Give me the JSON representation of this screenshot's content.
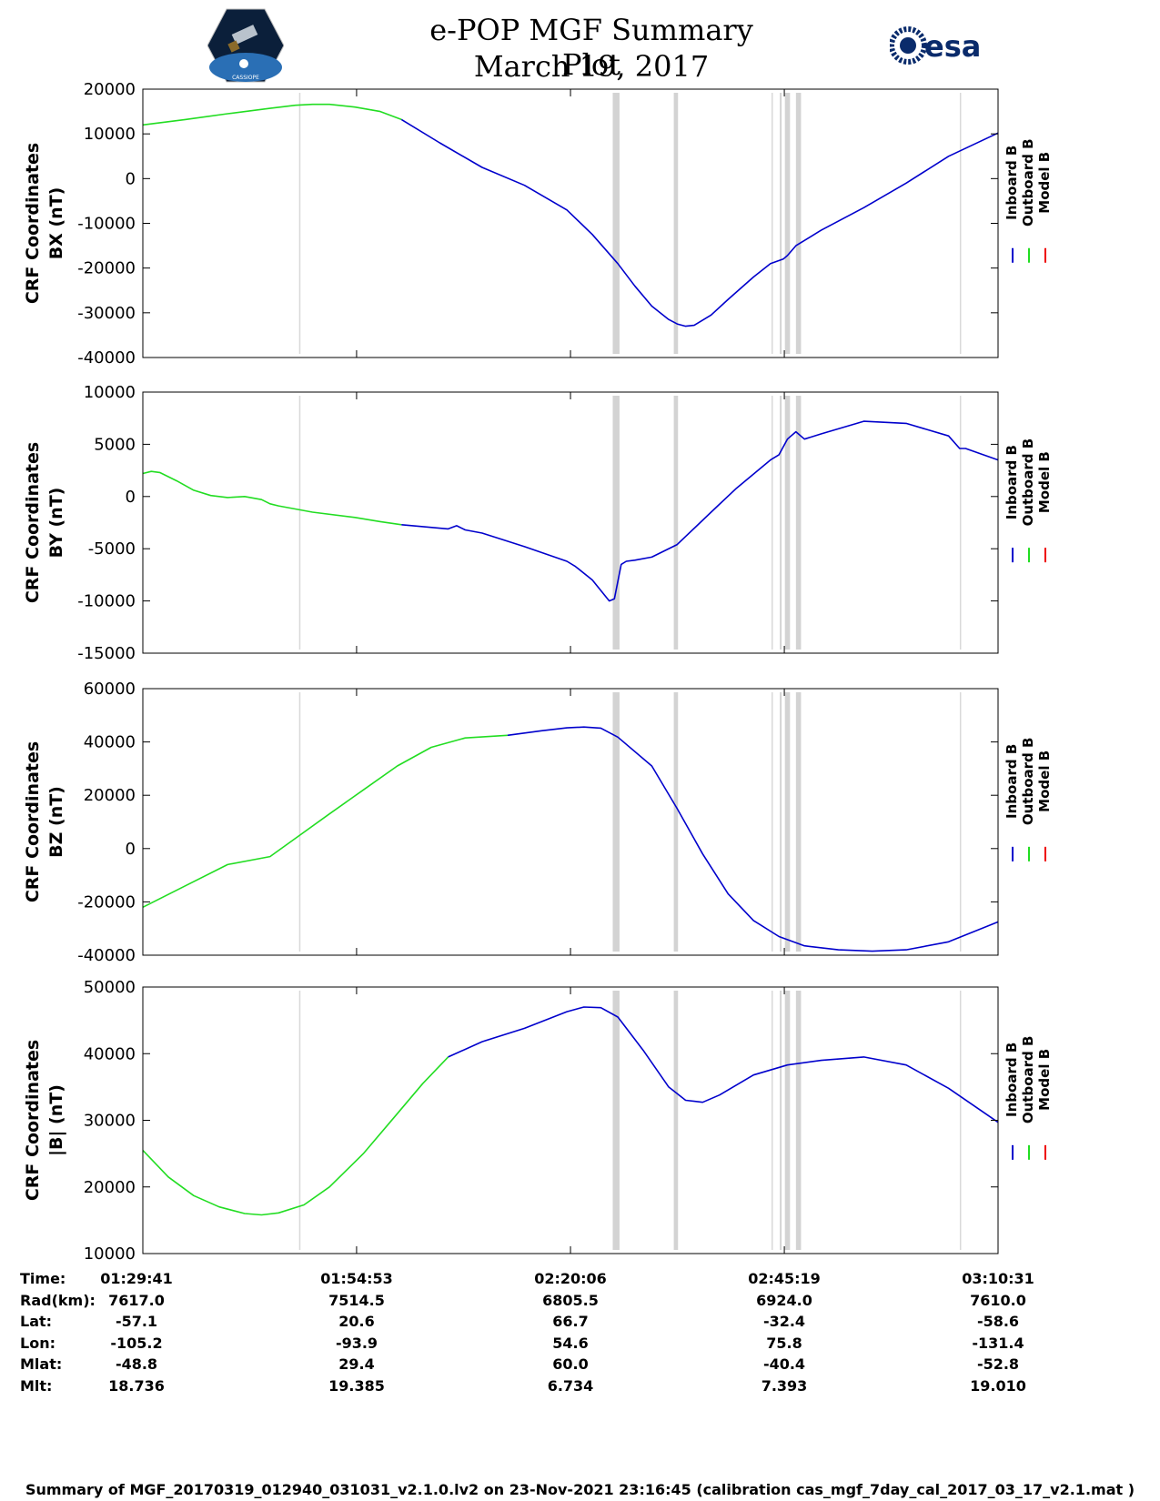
{
  "title": {
    "line1": "e-POP MGF Summary Plot",
    "line2": "March 19, 2017"
  },
  "logos": {
    "left_caption": "CASSIOPE",
    "right_text": "esa"
  },
  "legend": [
    "Inboard B",
    "Outboard B",
    "Model B"
  ],
  "colors": {
    "inboard": "#0000cc",
    "outboard": "#22dd22",
    "model": "#ee0000",
    "gap": "#d3d3d3",
    "thin": "#d9d9d9"
  },
  "chart_data": [
    {
      "type": "line",
      "ylabel_line1": "CRF Coordinates",
      "ylabel_line2": "BX (nT)",
      "ylim": [
        -40000,
        20000
      ],
      "yticks": [
        20000,
        10000,
        0,
        -10000,
        -20000,
        -30000,
        -40000
      ],
      "xlim_minutes": [
        0,
        100.83
      ],
      "gaps_minutes": [
        [
          55.4,
          56.2
        ],
        [
          62.6,
          63.1
        ],
        [
          75.1,
          75.3
        ],
        [
          75.7,
          76.3
        ],
        [
          77.0,
          77.6
        ]
      ],
      "thin_gaps_minutes": [
        18.5,
        74.2,
        96.4
      ],
      "series": [
        {
          "name": "Outboard B",
          "x": [
            0,
            5,
            10,
            15,
            18,
            20,
            22,
            25,
            28,
            30.5
          ],
          "y": [
            12000,
            13200,
            14500,
            15700,
            16400,
            16600,
            16600,
            16000,
            15000,
            13200
          ]
        },
        {
          "name": "Inboard B",
          "x": [
            30.5,
            35,
            40,
            45,
            50,
            53,
            56,
            58,
            60,
            62,
            63,
            64,
            65,
            67,
            69,
            72,
            74,
            75.5,
            76,
            77,
            80,
            85,
            90,
            95,
            100.83
          ],
          "y": [
            13200,
            8000,
            2500,
            -1500,
            -7000,
            -12500,
            -19000,
            -24000,
            -28500,
            -31500,
            -32500,
            -33000,
            -32800,
            -30500,
            -27000,
            -22000,
            -19000,
            -18000,
            -17200,
            -15000,
            -11500,
            -6500,
            -1000,
            5000,
            10200
          ]
        },
        {
          "name": "Model B",
          "x": [],
          "y": []
        }
      ]
    },
    {
      "type": "line",
      "ylabel_line1": "CRF Coordinates",
      "ylabel_line2": "BY (nT)",
      "ylim": [
        -15000,
        10000
      ],
      "yticks": [
        10000,
        5000,
        0,
        -5000,
        -10000,
        -15000
      ],
      "xlim_minutes": [
        0,
        100.83
      ],
      "gaps_minutes": [
        [
          55.4,
          56.2
        ],
        [
          62.6,
          63.1
        ],
        [
          75.1,
          75.3
        ],
        [
          75.7,
          76.3
        ],
        [
          77.0,
          77.6
        ]
      ],
      "thin_gaps_minutes": [
        18.5,
        74.2,
        96.4
      ],
      "series": [
        {
          "name": "Outboard B",
          "x": [
            0,
            1,
            2,
            4,
            6,
            8,
            10,
            12,
            14,
            15,
            16,
            20,
            25,
            28,
            30.5
          ],
          "y": [
            2200,
            2400,
            2300,
            1500,
            600,
            100,
            -100,
            0,
            -300,
            -700,
            -900,
            -1500,
            -2000,
            -2400,
            -2700
          ]
        },
        {
          "name": "Inboard B",
          "x": [
            30.5,
            36,
            37,
            38,
            40,
            45,
            50,
            51,
            53,
            55,
            55.6,
            56.4,
            57,
            58,
            60,
            63,
            67,
            70,
            74,
            75,
            76,
            77,
            78,
            80,
            85,
            90,
            95,
            96.3,
            97,
            100.83
          ],
          "y": [
            -2700,
            -3100,
            -2800,
            -3200,
            -3500,
            -4800,
            -6200,
            -6700,
            -8000,
            -10000,
            -9800,
            -6500,
            -6200,
            -6100,
            -5800,
            -4600,
            -1500,
            800,
            3500,
            4000,
            5500,
            6200,
            5500,
            6000,
            7200,
            7000,
            5800,
            4600,
            4600,
            3500
          ]
        },
        {
          "name": "Model B",
          "x": [],
          "y": []
        }
      ]
    },
    {
      "type": "line",
      "ylabel_line1": "CRF Coordinates",
      "ylabel_line2": "BZ (nT)",
      "ylim": [
        -40000,
        60000
      ],
      "yticks": [
        60000,
        40000,
        20000,
        0,
        -20000,
        -40000
      ],
      "xlim_minutes": [
        0,
        100.83
      ],
      "gaps_minutes": [
        [
          55.4,
          56.2
        ],
        [
          62.6,
          63.1
        ],
        [
          75.1,
          75.3
        ],
        [
          75.7,
          76.3
        ],
        [
          77.0,
          77.6
        ]
      ],
      "thin_gaps_minutes": [
        18.5,
        74.2,
        96.4
      ],
      "series": [
        {
          "name": "Outboard B",
          "x": [
            0,
            5,
            10,
            15,
            18.5,
            22,
            26,
            30,
            34,
            38,
            43
          ],
          "y": [
            -22000,
            -14000,
            -6000,
            -3000,
            5000,
            13000,
            22000,
            31000,
            38000,
            41500,
            42500
          ]
        },
        {
          "name": "Inboard B",
          "x": [
            43,
            47,
            50,
            52,
            54,
            56,
            60,
            63,
            66,
            69,
            72,
            75,
            78,
            82,
            86,
            90,
            95,
            100.83
          ],
          "y": [
            42500,
            44200,
            45300,
            45600,
            45200,
            41800,
            31000,
            15000,
            -2000,
            -17000,
            -27000,
            -33000,
            -36500,
            -38000,
            -38500,
            -38000,
            -35000,
            -27500
          ]
        },
        {
          "name": "Model B",
          "x": [],
          "y": []
        }
      ]
    },
    {
      "type": "line",
      "ylabel_line1": "CRF Coordinates",
      "ylabel_line2": "|B| (nT)",
      "ylim": [
        10000,
        50000
      ],
      "yticks": [
        50000,
        40000,
        30000,
        20000,
        10000
      ],
      "xlim_minutes": [
        0,
        100.83
      ],
      "gaps_minutes": [
        [
          55.4,
          56.2
        ],
        [
          62.6,
          63.1
        ],
        [
          75.1,
          75.3
        ],
        [
          75.7,
          76.3
        ],
        [
          77.0,
          77.6
        ]
      ],
      "thin_gaps_minutes": [
        18.5,
        74.2,
        96.4
      ],
      "series": [
        {
          "name": "Outboard B",
          "x": [
            0,
            3,
            6,
            9,
            12,
            14,
            16,
            19,
            22,
            26,
            30,
            33,
            36
          ],
          "y": [
            25500,
            21500,
            18700,
            17000,
            16000,
            15800,
            16100,
            17300,
            20000,
            25000,
            31000,
            35500,
            39500
          ]
        },
        {
          "name": "Inboard B",
          "x": [
            36,
            40,
            45,
            50,
            52,
            54,
            56,
            59,
            62,
            64,
            66,
            68,
            72,
            76,
            80,
            85,
            90,
            95,
            100.83
          ],
          "y": [
            39500,
            41800,
            43800,
            46300,
            47000,
            46900,
            45500,
            40500,
            35000,
            33000,
            32700,
            33800,
            36800,
            38300,
            39000,
            39500,
            38300,
            34800,
            29700
          ]
        },
        {
          "name": "Model B",
          "x": [],
          "y": []
        }
      ]
    }
  ],
  "x_axis": {
    "tick_minutes": [
      0,
      25.2,
      50.42,
      75.63,
      100.83
    ]
  },
  "ephemeris": {
    "labels": [
      "Time:",
      "Rad(km):",
      "Lat:",
      "Lon:",
      "Mlat:",
      "Mlt:"
    ],
    "columns": [
      [
        "01:29:41",
        "7617.0",
        "-57.1",
        "-105.2",
        "-48.8",
        "18.736"
      ],
      [
        "01:54:53",
        "7514.5",
        "20.6",
        "-93.9",
        "29.4",
        "19.385"
      ],
      [
        "02:20:06",
        "6805.5",
        "66.7",
        "54.6",
        "60.0",
        "6.734"
      ],
      [
        "02:45:19",
        "6924.0",
        "-32.4",
        "75.8",
        "-40.4",
        "7.393"
      ],
      [
        "03:10:31",
        "7610.0",
        "-58.6",
        "-131.4",
        "-52.8",
        "19.010"
      ]
    ]
  },
  "footer": "Summary of MGF_20170319_012940_031031_v2.1.0.lv2 on 23-Nov-2021 23:16:45 (calibration cas_mgf_7day_cal_2017_03_17_v2.1.mat )"
}
